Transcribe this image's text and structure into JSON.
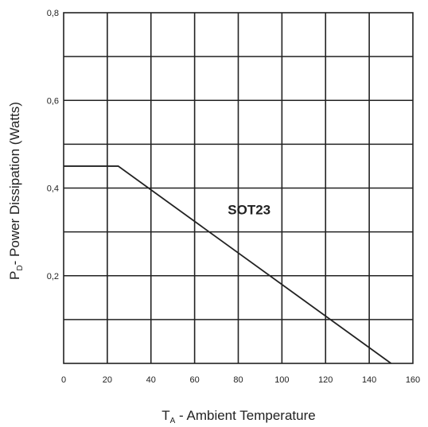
{
  "chart_data": {
    "type": "line",
    "xlabel_main": "T",
    "xlabel_sub": "A",
    "xlabel_rest": " - Ambient Temperature",
    "ylabel_main": "P",
    "ylabel_sub": "D",
    "ylabel_rest": "- Power Dissipation (Watts)",
    "xlim": [
      0,
      160
    ],
    "ylim": [
      0,
      0.8
    ],
    "x_ticks": [
      0,
      20,
      40,
      60,
      80,
      100,
      120,
      140,
      160
    ],
    "x_tick_labels": [
      "0",
      "20",
      "40",
      "60",
      "80",
      "100",
      "120",
      "140",
      "160"
    ],
    "y_label_ticks": [
      0.2,
      0.4,
      0.6,
      0.8
    ],
    "y_tick_labels": [
      "0,2",
      "0,4",
      "0,6",
      "0,8"
    ],
    "y_grid": [
      0.1,
      0.2,
      0.3,
      0.4,
      0.5,
      0.6,
      0.7,
      0.8
    ],
    "grid": true,
    "series": [
      {
        "x": [
          0,
          25,
          150
        ],
        "y": [
          0.45,
          0.45,
          0
        ]
      }
    ],
    "annotations": [
      {
        "text": "SOT23",
        "x": 85,
        "y": 0.34
      }
    ]
  }
}
